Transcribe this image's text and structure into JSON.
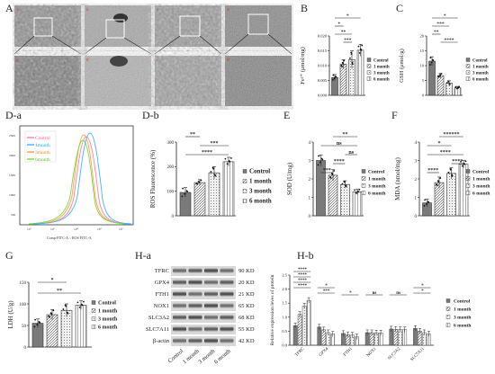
{
  "panels": {
    "A": "A",
    "B": "B",
    "C": "C",
    "Da": "D-a",
    "Db": "D-b",
    "E": "E",
    "F": "F",
    "G": "G",
    "Ha": "H-a",
    "Hb": "H-b"
  },
  "micrographs": {
    "top": [
      "a",
      "b",
      "c",
      "d"
    ],
    "bottom": [
      "a'",
      "b'",
      "c'",
      "d'"
    ]
  },
  "colors": {
    "control": "#7a7a7a",
    "one_month": "#9a9a9a",
    "three_month": "#f2f2f2",
    "six_month": "#ffffff",
    "flow_control": "#ff7f9f",
    "flow_1m": "#3fb6ff",
    "flow_3m": "#ffa040",
    "flow_6m": "#7bd64a"
  },
  "legend_groups": [
    "Control",
    "1 month",
    "3 month",
    "6 month"
  ],
  "flow": {
    "legend": [
      "Control",
      "1month",
      "3month",
      "6month"
    ],
    "xlabel": "Comp-FITC-A :: ROS FITC-A"
  },
  "blots": {
    "proteins": [
      "TFRC",
      "GPX4",
      "FTH1",
      "NOX1",
      "SLC3A2",
      "SLC7A11",
      "β-actin"
    ],
    "sizes": [
      "90 KD",
      "20 KD",
      "21 KD",
      "65 KD",
      "68 KD",
      "55 KD",
      "42 KD"
    ],
    "lanes": [
      "Control",
      "1 month",
      "3 month",
      "6 month"
    ]
  },
  "chart_data": [
    {
      "id": "B",
      "type": "bar",
      "categories": [
        "Control",
        "1 month",
        "3 month",
        "6 month"
      ],
      "values": [
        0.006,
        0.0105,
        0.012,
        0.0152
      ],
      "errors": [
        0.001,
        0.0015,
        0.003,
        0.002
      ],
      "ylabel": "Fe²⁺ (μmol/mg)",
      "ylim": [
        0,
        0.02
      ],
      "yticks": [
        "0.000",
        "0.005",
        "0.010",
        "0.015",
        "0.020"
      ],
      "significance": [
        "*",
        "*",
        "**",
        "***"
      ]
    },
    {
      "id": "C",
      "type": "bar",
      "categories": [
        "Control",
        "1 month",
        "3 month",
        "6 month"
      ],
      "values": [
        11.5,
        6.6,
        4.1,
        2.5
      ],
      "errors": [
        1.5,
        0.8,
        0.8,
        0.5
      ],
      "ylabel": "GSH (μmol/g)",
      "ylim": [
        0,
        20
      ],
      "yticks": [
        "0",
        "5",
        "10",
        "15",
        "20"
      ],
      "significance": [
        "*",
        "***",
        "**",
        "****"
      ]
    },
    {
      "id": "Db",
      "type": "bar",
      "categories": [
        "Control",
        "1 month",
        "3 month",
        "6 month"
      ],
      "values": [
        95,
        135,
        175,
        220
      ],
      "errors": [
        20,
        12,
        25,
        18
      ],
      "ylabel": "ROS Fluorescence (%)",
      "ylim": [
        0,
        300
      ],
      "yticks": [
        "0",
        "100",
        "200",
        "300"
      ],
      "significance": [
        "**",
        "***",
        "****"
      ]
    },
    {
      "id": "E",
      "type": "bar",
      "categories": [
        "Control",
        "1 month",
        "3 month",
        "6 month"
      ],
      "values": [
        3.0,
        2.2,
        1.7,
        1.3
      ],
      "errors": [
        0.3,
        0.3,
        0.2,
        0.15
      ],
      "ylabel": "SOD (U/mg)",
      "ylim": [
        0,
        4
      ],
      "yticks": [
        "0",
        "1",
        "2",
        "3",
        "4"
      ],
      "significance": [
        "**",
        "ns",
        "ns",
        "****",
        "***"
      ]
    },
    {
      "id": "F",
      "type": "bar",
      "categories": [
        "Control",
        "1 month",
        "3 month",
        "6 month"
      ],
      "values": [
        0.7,
        1.8,
        2.3,
        2.8
      ],
      "errors": [
        0.2,
        0.3,
        0.3,
        0.2
      ],
      "ylabel": "MDA (nmol/mg)",
      "ylim": [
        0,
        4
      ],
      "yticks": [
        "0",
        "1",
        "2",
        "3",
        "4"
      ],
      "significance": [
        "******",
        "*",
        "****",
        "****",
        "****"
      ]
    },
    {
      "id": "G",
      "type": "bar",
      "categories": [
        "Control",
        "1 month",
        "3 month",
        "6 month"
      ],
      "values": [
        55,
        75,
        85,
        97
      ],
      "errors": [
        10,
        12,
        15,
        10
      ],
      "ylabel": "LDH (U/g)",
      "ylim": [
        0,
        150
      ],
      "yticks": [
        "0",
        "50",
        "100",
        "150"
      ],
      "significance": [
        "*",
        "**"
      ]
    },
    {
      "id": "Hb",
      "type": "bar",
      "categories": [
        "TFRC",
        "GPX4",
        "FTH1",
        "NOX1",
        "SLC3A2",
        "SLC7A11"
      ],
      "series": [
        {
          "name": "Control",
          "values": [
            0.7,
            0.65,
            0.42,
            0.45,
            0.58,
            0.6
          ]
        },
        {
          "name": "1 month",
          "values": [
            1.1,
            0.55,
            0.38,
            0.45,
            0.57,
            0.5
          ]
        },
        {
          "name": "3 month",
          "values": [
            1.4,
            0.45,
            0.36,
            0.44,
            0.56,
            0.45
          ]
        },
        {
          "name": "6 month",
          "values": [
            1.6,
            0.4,
            0.3,
            0.44,
            0.56,
            0.4
          ]
        }
      ],
      "ylabel": "Relative expression leves of protein",
      "ylim": [
        0,
        2.5
      ],
      "yticks": [
        "0.0",
        "0.5",
        "1.0",
        "1.5",
        "2.0",
        "2.5"
      ],
      "significance": [
        "****",
        "****",
        "****",
        "****",
        "*",
        "***",
        "*",
        "ns",
        "ns",
        "*",
        "*"
      ]
    }
  ]
}
